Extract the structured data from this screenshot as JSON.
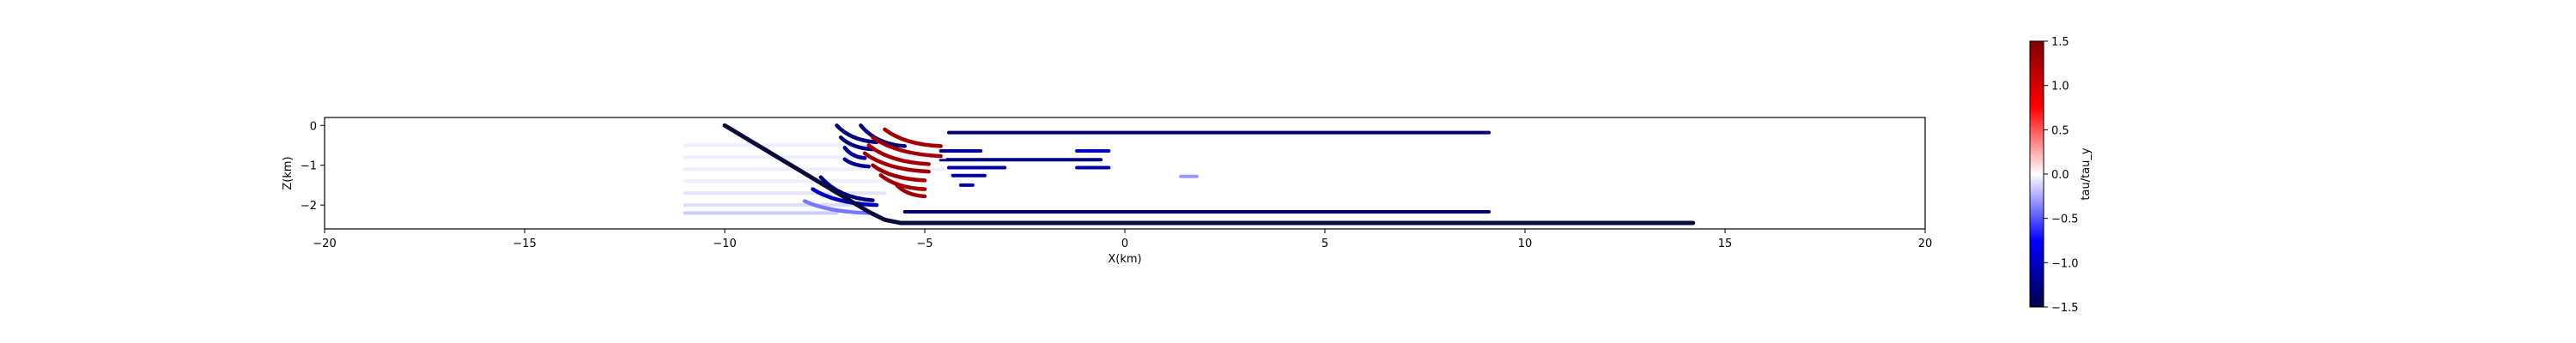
{
  "chart_data": {
    "type": "line",
    "title": "",
    "xlabel": "X(km)",
    "ylabel": "Z(km)",
    "xlim": [
      -20,
      20
    ],
    "ylim": [
      -2.6,
      0.2
    ],
    "xticks": [
      -20,
      -15,
      -10,
      -5,
      0,
      5,
      10,
      15,
      20
    ],
    "yticks": [
      0,
      -1,
      -2
    ],
    "grid": false,
    "fault": {
      "color": "#0b0b3d",
      "x": [
        -10,
        -6.4,
        -6.0,
        -5.6,
        14.2
      ],
      "z": [
        0,
        -2.17,
        -2.37,
        -2.45,
        -2.45
      ]
    },
    "colorbar": {
      "label": "tau/tau_y",
      "min": -1.5,
      "max": 1.5,
      "ticks": [
        1.5,
        1.0,
        0.5,
        0.0,
        -0.5,
        -1.0,
        -1.5
      ],
      "tick_labels": [
        "1.5",
        "1.0",
        "0.5",
        "0.0",
        "−0.5",
        "−1.0",
        "−1.5"
      ],
      "colormap": "seismic",
      "colors": [
        "#00004c",
        "#0000ff",
        "#ffffff",
        "#ff0000",
        "#7f0000"
      ]
    },
    "horizontal_bands": [
      {
        "x": [
          -4.4,
          9.1
        ],
        "z": -0.18,
        "value": -1.3
      },
      {
        "x": [
          -5.5,
          9.1
        ],
        "z": -2.17,
        "value": -1.3
      },
      {
        "x": [
          -4.6,
          -0.6
        ],
        "z": -0.86,
        "value": -1.3
      },
      {
        "x": [
          -4.6,
          -3.6
        ],
        "z": -0.64,
        "value": -1.2
      },
      {
        "x": [
          -4.4,
          -3.0
        ],
        "z": -1.06,
        "value": -1.1
      },
      {
        "x": [
          -4.3,
          -3.5
        ],
        "z": -1.26,
        "value": -1.1
      },
      {
        "x": [
          -4.1,
          -3.8
        ],
        "z": -1.5,
        "value": -1.1
      },
      {
        "x": [
          -1.2,
          -0.4
        ],
        "z": -0.64,
        "value": -1.0
      },
      {
        "x": [
          -1.2,
          -0.4
        ],
        "z": -1.06,
        "value": -1.1
      },
      {
        "x": [
          1.4,
          1.8
        ],
        "z": -1.28,
        "value": -0.3
      },
      {
        "x": [
          -11,
          -4.5
        ],
        "z": -0.5,
        "value": -0.05
      },
      {
        "x": [
          -11,
          -4.5
        ],
        "z": -0.8,
        "value": -0.05
      },
      {
        "x": [
          -11,
          -4.5
        ],
        "z": -1.1,
        "value": -0.05
      },
      {
        "x": [
          -11,
          -5.5
        ],
        "z": -1.4,
        "value": -0.05
      },
      {
        "x": [
          -11,
          -6
        ],
        "z": -1.7,
        "value": -0.08
      },
      {
        "x": [
          -11,
          -6.5
        ],
        "z": -2.0,
        "value": -0.1
      },
      {
        "x": [
          -11,
          -7.2
        ],
        "z": -2.2,
        "value": -0.15
      }
    ],
    "arcs": [
      {
        "x0": -7.2,
        "x1": -6.2,
        "z0": 0.0,
        "z1": -0.42,
        "value": -1.3
      },
      {
        "x0": -7.1,
        "x1": -6.3,
        "z0": -0.3,
        "z1": -0.6,
        "value": -1.3
      },
      {
        "x0": -6.6,
        "x1": -5.5,
        "z0": 0.0,
        "z1": -0.52,
        "value": -1.3
      },
      {
        "x0": -7.0,
        "x1": -6.5,
        "z0": -0.56,
        "z1": -0.82,
        "value": -1.2
      },
      {
        "x0": -7.0,
        "x1": -6.4,
        "z0": -0.85,
        "z1": -1.03,
        "value": -1.2
      },
      {
        "x0": -6.0,
        "x1": -4.6,
        "z0": -0.1,
        "z1": -0.52,
        "value": 1.3
      },
      {
        "x0": -6.3,
        "x1": -4.6,
        "z0": -0.3,
        "z1": -0.77,
        "value": 1.3
      },
      {
        "x0": -6.4,
        "x1": -4.9,
        "z0": -0.5,
        "z1": -0.97,
        "value": 1.3
      },
      {
        "x0": -6.5,
        "x1": -4.9,
        "z0": -0.7,
        "z1": -1.16,
        "value": 1.3
      },
      {
        "x0": -6.3,
        "x1": -5.0,
        "z0": -1.0,
        "z1": -1.38,
        "value": 1.3
      },
      {
        "x0": -6.1,
        "x1": -5.0,
        "z0": -1.25,
        "z1": -1.6,
        "value": 1.3
      },
      {
        "x0": -5.7,
        "x1": -5.0,
        "z0": -1.5,
        "z1": -1.78,
        "value": 1.3
      },
      {
        "x0": -7.6,
        "x1": -6.3,
        "z0": -1.3,
        "z1": -1.88,
        "value": -1.3
      },
      {
        "x0": -7.8,
        "x1": -6.2,
        "z0": -1.6,
        "z1": -2.0,
        "value": -1.0
      },
      {
        "x0": -8.0,
        "x1": -6.4,
        "z0": -1.9,
        "z1": -2.2,
        "value": -0.4
      }
    ]
  }
}
